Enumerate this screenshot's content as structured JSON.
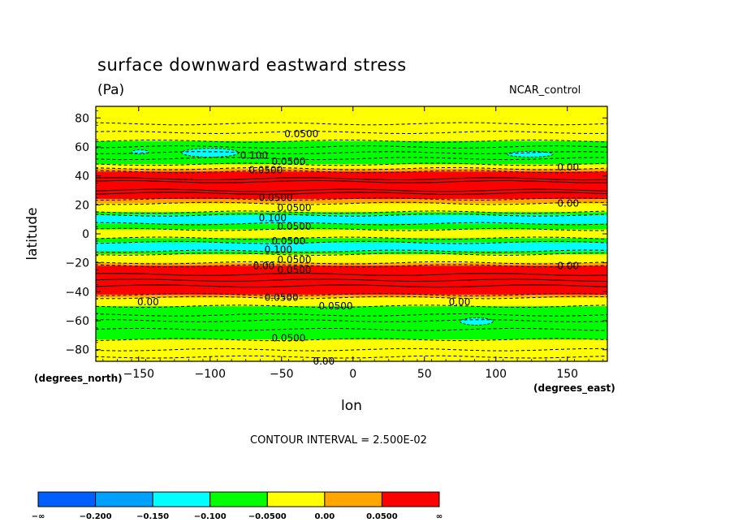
{
  "header": {
    "title": "surface downward eastward stress",
    "units": "(Pa)",
    "run_name": "NCAR_control"
  },
  "footer": {
    "contour_interval": "CONTOUR INTERVAL = 2.500E-02"
  },
  "colors": {
    "red": "#ff0000",
    "orange": "#ffa500",
    "yellow": "#ffff00",
    "green": "#00ff00",
    "cyan": "#00ffff",
    "mid_blue": "#00a0ff",
    "blue": "#0060ff"
  },
  "chart_data": {
    "type": "heatmap",
    "title": "surface downward eastward stress",
    "units": "(Pa)",
    "xlabel": "lon",
    "ylabel": "latitude",
    "x_units": "(degrees_east)",
    "y_units": "(degrees_north)",
    "xlim": [
      -180,
      178
    ],
    "ylim": [
      -88,
      88
    ],
    "xticks": [
      -150,
      -100,
      -50,
      0,
      50,
      100,
      150
    ],
    "yticks": [
      -80,
      -60,
      -40,
      -20,
      0,
      20,
      40,
      60,
      80
    ],
    "x_tick_labels": [
      "−150",
      "−100",
      "−50",
      "0",
      "50",
      "100",
      "150"
    ],
    "y_tick_labels": [
      "−80",
      "−60",
      "−40",
      "−20",
      "0",
      "20",
      "40",
      "60",
      "80"
    ],
    "bands": [
      {
        "lat_min": 64,
        "lat_max": 88,
        "category": "yellow"
      },
      {
        "lat_min": 48,
        "lat_max": 64,
        "category": "green"
      },
      {
        "lat_min": 45,
        "lat_max": 48,
        "category": "yellow"
      },
      {
        "lat_min": 43,
        "lat_max": 45,
        "category": "orange"
      },
      {
        "lat_min": 24,
        "lat_max": 43,
        "category": "red"
      },
      {
        "lat_min": 21,
        "lat_max": 24,
        "category": "orange"
      },
      {
        "lat_min": 15,
        "lat_max": 21,
        "category": "yellow"
      },
      {
        "lat_min": 13,
        "lat_max": 15,
        "category": "green"
      },
      {
        "lat_min": 7,
        "lat_max": 13,
        "category": "cyan"
      },
      {
        "lat_min": 3,
        "lat_max": 7,
        "category": "green"
      },
      {
        "lat_min": -3,
        "lat_max": 3,
        "category": "yellow"
      },
      {
        "lat_min": -6,
        "lat_max": -3,
        "category": "green"
      },
      {
        "lat_min": -12,
        "lat_max": -6,
        "category": "cyan"
      },
      {
        "lat_min": -14,
        "lat_max": -12,
        "category": "green"
      },
      {
        "lat_min": -20,
        "lat_max": -14,
        "category": "yellow"
      },
      {
        "lat_min": -22,
        "lat_max": -20,
        "category": "orange"
      },
      {
        "lat_min": -42,
        "lat_max": -22,
        "category": "red"
      },
      {
        "lat_min": -44,
        "lat_max": -42,
        "category": "orange"
      },
      {
        "lat_min": -50,
        "lat_max": -44,
        "category": "yellow"
      },
      {
        "lat_min": -73,
        "lat_max": -50,
        "category": "green"
      },
      {
        "lat_min": -88,
        "lat_max": -73,
        "category": "yellow"
      }
    ],
    "patches": [
      {
        "lon_min": -155,
        "lon_max": -143,
        "lat_min": 55,
        "lat_max": 58,
        "category": "cyan"
      },
      {
        "lon_min": -120,
        "lon_max": -80,
        "lat_min": 53,
        "lat_max": 59,
        "category": "cyan"
      },
      {
        "lon_min": 108,
        "lon_max": 140,
        "lat_min": 53,
        "lat_max": 57,
        "category": "cyan"
      },
      {
        "lon_min": 75,
        "lon_max": 98,
        "lat_min": -63,
        "lat_max": -58,
        "category": "cyan"
      }
    ],
    "contour_labels": [
      {
        "text": "0.0500",
        "lon": -48,
        "lat": 69
      },
      {
        "text": "0.100",
        "lon": -79,
        "lat": 54
      },
      {
        "text": "0.0500",
        "lon": -57,
        "lat": 50
      },
      {
        "text": "0.0500",
        "lon": -73,
        "lat": 44
      },
      {
        "text": "0.00",
        "lon": 143,
        "lat": 46
      },
      {
        "text": "0.0500",
        "lon": -66,
        "lat": 25
      },
      {
        "text": "0.0500",
        "lon": -53,
        "lat": 18
      },
      {
        "text": "0.00",
        "lon": 143,
        "lat": 21
      },
      {
        "text": "0.100",
        "lon": -66,
        "lat": 11
      },
      {
        "text": "0.0500",
        "lon": -53,
        "lat": 5
      },
      {
        "text": "0.0500",
        "lon": -57,
        "lat": -5
      },
      {
        "text": "0.100",
        "lon": -62,
        "lat": -11
      },
      {
        "text": "0.0500",
        "lon": -53,
        "lat": -18
      },
      {
        "text": "0.00",
        "lon": -70,
        "lat": -22
      },
      {
        "text": "0.0500",
        "lon": -53,
        "lat": -25
      },
      {
        "text": "0.00",
        "lon": 143,
        "lat": -22
      },
      {
        "text": "0.0500",
        "lon": -62,
        "lat": -44
      },
      {
        "text": "0.00",
        "lon": -151,
        "lat": -47
      },
      {
        "text": "0.0500",
        "lon": -24,
        "lat": -50
      },
      {
        "text": "0.00",
        "lon": 67,
        "lat": -47
      },
      {
        "text": "0.0500",
        "lon": -57,
        "lat": -72
      },
      {
        "text": "0.00",
        "lon": -28,
        "lat": -88
      }
    ],
    "colorbar": {
      "categories": [
        "blue",
        "mid_blue",
        "cyan",
        "green",
        "yellow",
        "orange",
        "red"
      ],
      "labels": [
        "−∞",
        "−0.200",
        "−0.150",
        "−0.100",
        "−0.0500",
        "0.00",
        "0.0500",
        "∞"
      ]
    }
  }
}
